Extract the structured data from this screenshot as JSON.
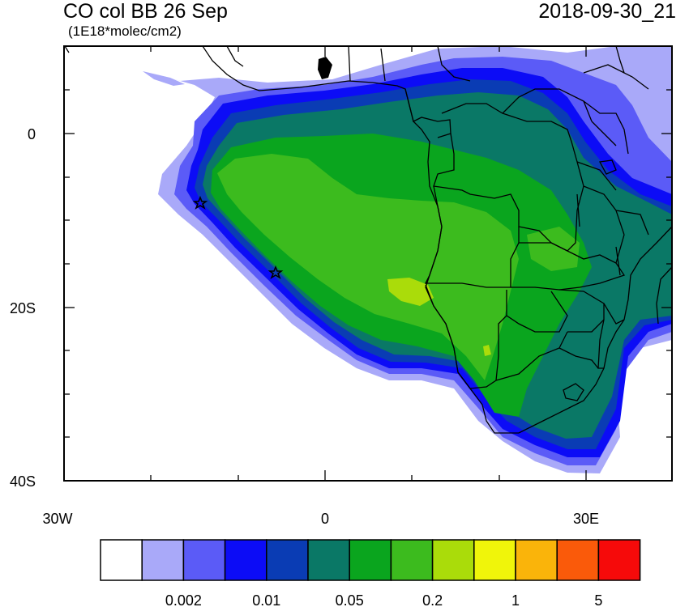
{
  "header": {
    "title": "CO col BB 26 Sep",
    "datetime": "2018-09-30_21",
    "units": "(1E18*molec/cm2)"
  },
  "axes": {
    "y_labels": [
      "0",
      "20S",
      "40S"
    ],
    "x_labels": [
      "30W",
      "0",
      "30E"
    ]
  },
  "map": {
    "region": "Southern Africa and South Atlantic",
    "lon_range": [
      -30,
      40
    ],
    "lat_range": [
      -40,
      10
    ],
    "markers": [
      {
        "name": "star-marker-ascension",
        "lon": -14.4,
        "lat": -7.9
      },
      {
        "name": "star-marker-st-helena",
        "lon": -5.7,
        "lat": -15.9
      }
    ]
  },
  "colorbar": {
    "colors": [
      "#ffffff",
      "#a9a9f9",
      "#5b5bf7",
      "#0c0cf6",
      "#0a3cb4",
      "#0a7866",
      "#0aa51e",
      "#3cbb1e",
      "#aadc0a",
      "#f0f50a",
      "#fab40a",
      "#fa5a0a",
      "#f60a0a"
    ],
    "labels": [
      "0.002",
      "0.01",
      "0.05",
      "0.2",
      "1",
      "5"
    ]
  }
}
